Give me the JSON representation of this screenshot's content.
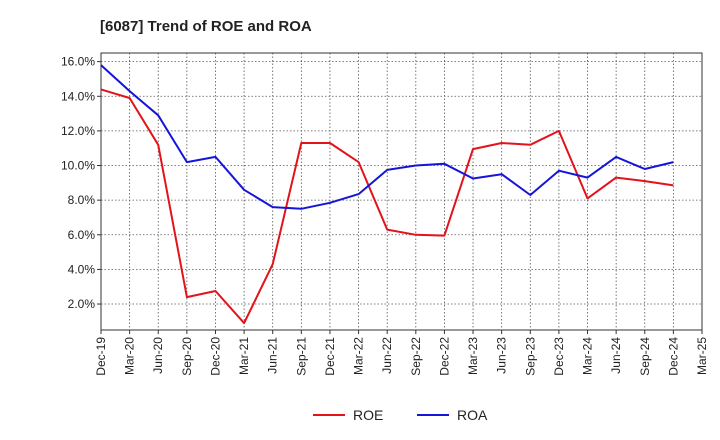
{
  "chart_data": {
    "type": "line",
    "title": "[6087]  Trend of ROE and ROA",
    "xlabel": "",
    "ylabel": "",
    "x_ticks": [
      "Dec-19",
      "Mar-20",
      "Jun-20",
      "Sep-20",
      "Dec-20",
      "Mar-21",
      "Jun-21",
      "Sep-21",
      "Dec-21",
      "Mar-22",
      "Jun-22",
      "Sep-22",
      "Dec-22",
      "Mar-23",
      "Jun-23",
      "Sep-23",
      "Dec-23",
      "Mar-24",
      "Jun-24",
      "Sep-24",
      "Dec-24",
      "Mar-25"
    ],
    "y_ticks": [
      {
        "value": 2,
        "label": "2.0%"
      },
      {
        "value": 4,
        "label": "4.0%"
      },
      {
        "value": 6,
        "label": "6.0%"
      },
      {
        "value": 8,
        "label": "8.0%"
      },
      {
        "value": 10,
        "label": "10.0%"
      },
      {
        "value": 12,
        "label": "12.0%"
      },
      {
        "value": 14,
        "label": "14.0%"
      },
      {
        "value": 16,
        "label": "16.0%"
      }
    ],
    "ylim": [
      0.5,
      16.5
    ],
    "grid": true,
    "legend_position": "bottom-center",
    "categories": [
      "Dec-19",
      "Mar-20",
      "Jun-20",
      "Sep-20",
      "Dec-20",
      "Mar-21",
      "Jun-21",
      "Sep-21",
      "Dec-21",
      "Mar-22",
      "Jun-22",
      "Sep-22",
      "Dec-22",
      "Mar-23",
      "Jun-23",
      "Sep-23",
      "Dec-23",
      "Mar-24",
      "Jun-24",
      "Sep-24",
      "Dec-24"
    ],
    "series": [
      {
        "name": "ROE",
        "color": "#e3121b",
        "values": [
          14.4,
          13.9,
          11.2,
          2.4,
          2.75,
          0.9,
          4.3,
          11.3,
          11.3,
          10.2,
          6.3,
          6.0,
          5.95,
          10.95,
          11.3,
          11.2,
          12.0,
          8.1,
          9.3,
          9.1,
          8.85
        ]
      },
      {
        "name": "ROA",
        "color": "#1515d8",
        "values": [
          15.8,
          14.3,
          12.9,
          10.2,
          10.5,
          8.6,
          7.6,
          7.5,
          7.85,
          8.35,
          9.75,
          10.0,
          10.1,
          9.25,
          9.5,
          8.3,
          9.7,
          9.3,
          10.5,
          9.8,
          10.2
        ]
      }
    ]
  }
}
